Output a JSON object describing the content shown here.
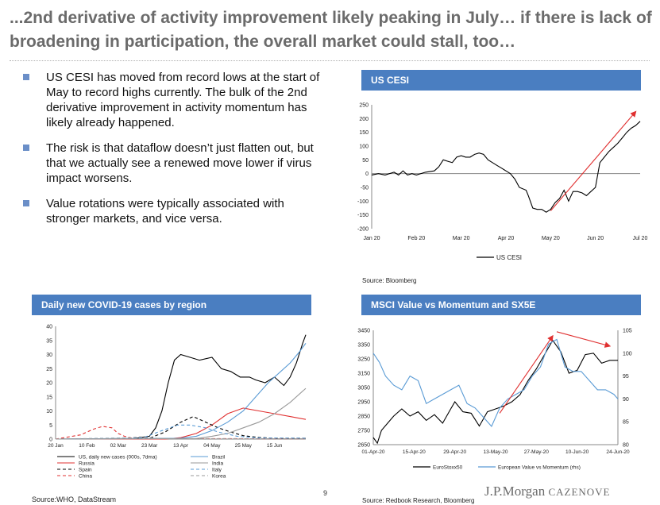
{
  "header": {
    "title": "...2nd derivative of activity improvement likely peaking in July… if there is lack of broadening in participation, the overall market could stall, too…"
  },
  "bullets": [
    "US CESI has moved from record lows at the start of May to record highs currently. The bulk of the 2nd derivative improvement in activity momentum has likely already happened.",
    "The risk is that dataflow doesn’t just flatten out, but that we actually see a renewed move lower if virus impact worsens.",
    "Value rotations were typically associated with stronger markets, and vice versa."
  ],
  "panels": {
    "cesi": {
      "title": "US CESI",
      "source": "Source: Bloomberg"
    },
    "covid": {
      "title": "Daily new COVID-19 cases by region",
      "source": "Source:WHO, DataStream"
    },
    "msci": {
      "title": "MSCI Value vs Momentum and SX5E",
      "source": "Source: Redbook Research, Bloomberg"
    }
  },
  "footer": {
    "page": "9",
    "logo_main": "J.P.Morgan",
    "logo_sub": "CAZENOVE"
  },
  "colors": {
    "accent": "#4a7ec1",
    "bullet": "#6b8fc8",
    "arrow": "#e03030",
    "line_blue": "#5a9bd5"
  },
  "chart_data": [
    {
      "id": "cesi",
      "type": "line",
      "x_ticks": [
        "Jan 20",
        "Feb 20",
        "Mar 20",
        "Apr 20",
        "May 20",
        "Jun 20",
        "Jul 20"
      ],
      "y_ticks": [
        "250",
        "200",
        "150",
        "100",
        "50",
        "0",
        "-50",
        "-100",
        "-150",
        "-200"
      ],
      "ylim": [
        -200,
        250
      ],
      "xlim": [
        0,
        6
      ],
      "grid": false,
      "legend": "bottom",
      "series": [
        {
          "name": "US CESI",
          "color": "#000000",
          "x": [
            0,
            0.15,
            0.3,
            0.5,
            0.6,
            0.7,
            0.8,
            0.9,
            1.0,
            1.2,
            1.4,
            1.5,
            1.6,
            1.7,
            1.8,
            1.9,
            2.0,
            2.1,
            2.2,
            2.3,
            2.4,
            2.5,
            2.6,
            2.7,
            2.8,
            2.9,
            3.0,
            3.1,
            3.2,
            3.3,
            3.45,
            3.5,
            3.6,
            3.7,
            3.8,
            3.9,
            4.0,
            4.1,
            4.2,
            4.3,
            4.4,
            4.5,
            4.6,
            4.7,
            4.8,
            4.9,
            5.0,
            5.1,
            5.2,
            5.3,
            5.4,
            5.5,
            5.6,
            5.7,
            5.8,
            5.9,
            6.0
          ],
          "y": [
            -5,
            0,
            -5,
            5,
            -5,
            10,
            -5,
            0,
            -5,
            5,
            10,
            25,
            50,
            45,
            40,
            60,
            65,
            60,
            60,
            70,
            75,
            70,
            50,
            40,
            30,
            20,
            10,
            0,
            -20,
            -50,
            -60,
            -80,
            -125,
            -130,
            -130,
            -140,
            -130,
            -105,
            -90,
            -60,
            -100,
            -65,
            -65,
            -70,
            -80,
            -65,
            -50,
            40,
            60,
            80,
            95,
            110,
            130,
            150,
            165,
            175,
            190
          ]
        }
      ],
      "annotations": [
        {
          "type": "arrow",
          "color": "red",
          "from": [
            4.0,
            -135
          ],
          "to": [
            5.9,
            225
          ]
        }
      ]
    },
    {
      "id": "covid",
      "type": "line",
      "x_ticks": [
        "20 Jan",
        "10 Feb",
        "02 Mar",
        "23 Mar",
        "13 Apr",
        "04 May",
        "25 May",
        "15 Jun"
      ],
      "y_ticks": [
        "40",
        "35",
        "30",
        "25",
        "20",
        "15",
        "10",
        "5",
        "0"
      ],
      "ylim": [
        0,
        40
      ],
      "xlim": [
        0,
        8
      ],
      "grid": false,
      "legend": "bottom",
      "series": [
        {
          "name": "US, daily new cases (000s, 7dma)",
          "color": "#000000",
          "dash": "",
          "x": [
            0,
            2.5,
            3.0,
            3.2,
            3.4,
            3.6,
            3.8,
            4.0,
            4.3,
            4.6,
            5.0,
            5.3,
            5.6,
            5.9,
            6.2,
            6.4,
            6.7,
            7.0,
            7.3,
            7.5,
            7.7,
            7.9,
            8.0
          ],
          "y": [
            0,
            0.2,
            1.0,
            4,
            10,
            20,
            28,
            30,
            29,
            28,
            29,
            25,
            24,
            22,
            22,
            21,
            20,
            22,
            19,
            22,
            27,
            34,
            37
          ]
        },
        {
          "name": "Russia",
          "color": "#e03030",
          "dash": "",
          "x": [
            0,
            3.5,
            4.0,
            4.5,
            5.0,
            5.5,
            6.0,
            6.5,
            7.0,
            7.5,
            8.0
          ],
          "y": [
            0,
            0,
            0.5,
            2,
            5,
            9,
            11,
            10,
            9,
            8,
            7
          ]
        },
        {
          "name": "Spain",
          "color": "#000000",
          "dash": "4 3",
          "x": [
            0,
            3.0,
            3.5,
            4.0,
            4.4,
            4.8,
            5.2,
            5.6,
            6.0,
            6.5,
            7.0,
            8.0
          ],
          "y": [
            0,
            0.3,
            2.5,
            6,
            8,
            6,
            4,
            2.5,
            1.2,
            0.6,
            0.3,
            0.3
          ]
        },
        {
          "name": "China",
          "color": "#e03030",
          "dash": "4 3",
          "x": [
            0,
            0.8,
            1.2,
            1.5,
            1.8,
            2.0,
            2.2,
            2.5,
            8.0
          ],
          "y": [
            0,
            1.5,
            3.5,
            4.5,
            4,
            2,
            1,
            0.2,
            0.1
          ]
        },
        {
          "name": "Brazil",
          "color": "#5a9bd5",
          "dash": "",
          "x": [
            0,
            4.0,
            4.5,
            5.0,
            5.5,
            6.0,
            6.4,
            6.8,
            7.2,
            7.5,
            7.8,
            8.0
          ],
          "y": [
            0,
            0.3,
            1,
            3,
            6,
            10,
            15,
            20,
            24,
            27,
            31,
            34
          ]
        },
        {
          "name": "India",
          "color": "#999999",
          "dash": "",
          "x": [
            0,
            4.5,
            5.0,
            5.5,
            6.0,
            6.5,
            7.0,
            7.5,
            8.0
          ],
          "y": [
            0,
            0.2,
            1,
            2,
            4,
            6,
            9,
            13,
            18
          ]
        },
        {
          "name": "Italy",
          "color": "#5a9bd5",
          "dash": "4 3",
          "x": [
            0,
            2.8,
            3.4,
            3.9,
            4.3,
            4.8,
            5.2,
            5.8,
            6.5,
            8.0
          ],
          "y": [
            0,
            0.5,
            3,
            5,
            5,
            4,
            2.5,
            1,
            0.4,
            0.3
          ]
        },
        {
          "name": "Korea",
          "color": "#999999",
          "dash": "4 3",
          "x": [
            0,
            2.2,
            2.7,
            3.0,
            3.3,
            3.8,
            8.0
          ],
          "y": [
            0,
            0.3,
            0.8,
            0.6,
            0.2,
            0.1,
            0.1
          ]
        }
      ]
    },
    {
      "id": "msci",
      "type": "line",
      "x_ticks": [
        "01-Apr-20",
        "15-Apr-20",
        "29-Apr-20",
        "13-May-20",
        "27-May-20",
        "10-Jun-20",
        "24-Jun-20"
      ],
      "y_ticks_left": [
        "3450",
        "3350",
        "3250",
        "3150",
        "3050",
        "2950",
        "2850",
        "2750",
        "2650"
      ],
      "y_ticks_right": [
        "105",
        "100",
        "95",
        "90",
        "85",
        "80"
      ],
      "ylim_left": [
        2650,
        3450
      ],
      "ylim_right": [
        80,
        105
      ],
      "xlim": [
        0,
        6
      ],
      "grid": false,
      "legend": "bottom",
      "series": [
        {
          "name": "EuroStoxx50",
          "color": "#000000",
          "axis": "left",
          "x": [
            0,
            0.1,
            0.2,
            0.35,
            0.5,
            0.7,
            0.9,
            1.1,
            1.3,
            1.5,
            1.7,
            1.9,
            2.0,
            2.2,
            2.4,
            2.6,
            2.8,
            3.0,
            3.2,
            3.4,
            3.6,
            3.8,
            4.0,
            4.2,
            4.4,
            4.6,
            4.8,
            5.0,
            5.2,
            5.4,
            5.6,
            5.8,
            6.0
          ],
          "y": [
            2700,
            2660,
            2750,
            2800,
            2850,
            2900,
            2850,
            2880,
            2820,
            2860,
            2800,
            2900,
            2950,
            2880,
            2870,
            2780,
            2880,
            2900,
            2920,
            2950,
            3000,
            3100,
            3180,
            3280,
            3380,
            3300,
            3150,
            3170,
            3280,
            3290,
            3220,
            3240,
            3240
          ]
        },
        {
          "name": "European Value vs Momentum (rhs)",
          "color": "#5a9bd5",
          "axis": "right",
          "x": [
            0,
            0.15,
            0.3,
            0.5,
            0.7,
            0.9,
            1.1,
            1.3,
            1.5,
            1.7,
            1.9,
            2.1,
            2.3,
            2.5,
            2.7,
            2.9,
            3.1,
            3.3,
            3.5,
            3.7,
            3.9,
            4.1,
            4.3,
            4.5,
            4.7,
            4.9,
            5.1,
            5.3,
            5.5,
            5.7,
            5.9,
            6.0
          ],
          "y": [
            100,
            98,
            95,
            93,
            92,
            95,
            94,
            89,
            90,
            91,
            92,
            93,
            89,
            88,
            86,
            84,
            88,
            90,
            91,
            92,
            95,
            97,
            102,
            103,
            97,
            96,
            96,
            94,
            92,
            92,
            91,
            90
          ]
        }
      ],
      "annotations": [
        {
          "type": "arrow",
          "color": "red",
          "from": [
            3.1,
            2870
          ],
          "to": [
            4.4,
            3410
          ]
        },
        {
          "type": "arrow",
          "color": "red",
          "from": [
            4.5,
            3440
          ],
          "to": [
            5.8,
            3340
          ]
        }
      ]
    }
  ]
}
